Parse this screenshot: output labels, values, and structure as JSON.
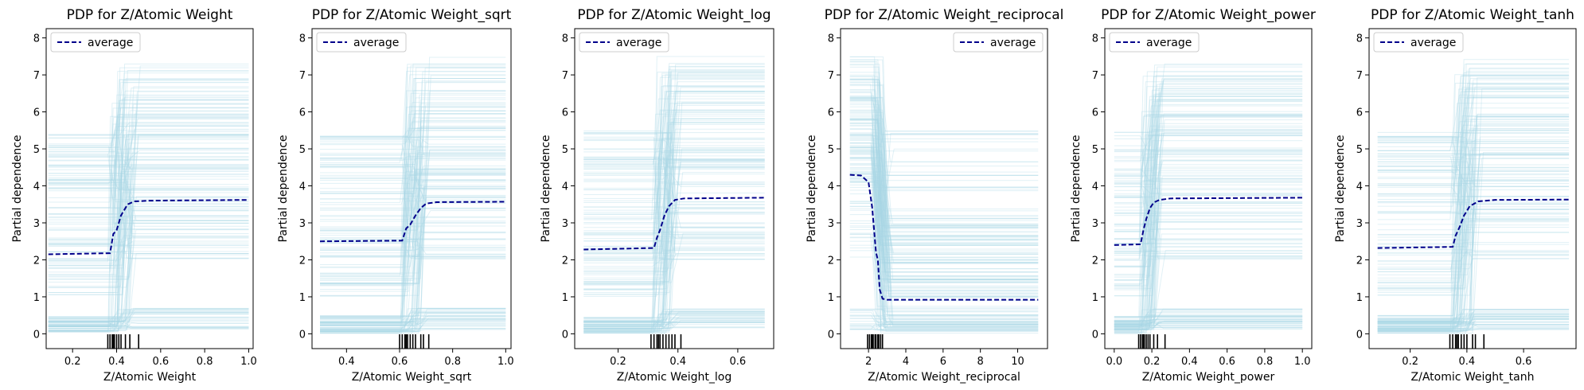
{
  "chart_data": [
    {
      "type": "line",
      "title": "PDP for Z/Atomic Weight",
      "xlabel": "Z/Atomic Weight",
      "ylabel": "Partial dependence",
      "xlim": [
        0.08,
        1.02
      ],
      "ylim": [
        -0.4,
        8.25
      ],
      "xticks": [
        0.2,
        0.4,
        0.6,
        0.8,
        1.0
      ],
      "xtick_labels": [
        "0.2",
        "0.4",
        "0.6",
        "0.8",
        "1.0"
      ],
      "yticks": [
        0,
        1,
        2,
        3,
        4,
        5,
        6,
        7,
        8
      ],
      "ytick_labels": [
        "0",
        "1",
        "2",
        "3",
        "4",
        "5",
        "6",
        "7",
        "8"
      ],
      "legend": {
        "label": "average",
        "position": "upper left"
      },
      "ice": {
        "x_start": 0.09,
        "x_end": 1.0,
        "jump_lo": 0.36,
        "jump_hi": 0.46
      },
      "average": {
        "x": [
          0.09,
          0.37,
          0.385,
          0.4,
          0.42,
          0.45,
          0.48,
          0.55,
          1.0
        ],
        "y": [
          2.15,
          2.18,
          2.7,
          2.8,
          3.2,
          3.5,
          3.58,
          3.6,
          3.62
        ]
      },
      "rug": [
        0.36,
        0.37,
        0.38,
        0.385,
        0.39,
        0.4,
        0.41,
        0.42,
        0.44,
        0.46,
        0.5
      ]
    },
    {
      "type": "line",
      "title": "PDP for Z/Atomic Weight_sqrt",
      "xlabel": "Z/Atomic Weight_sqrt",
      "ylabel": "Partial dependence",
      "xlim": [
        0.27,
        1.02
      ],
      "ylim": [
        -0.4,
        8.25
      ],
      "xticks": [
        0.4,
        0.6,
        0.8,
        1.0
      ],
      "xtick_labels": [
        "0.4",
        "0.6",
        "0.8",
        "1.0"
      ],
      "yticks": [
        0,
        1,
        2,
        3,
        4,
        5,
        6,
        7,
        8
      ],
      "ytick_labels": [
        "0",
        "1",
        "2",
        "3",
        "4",
        "5",
        "6",
        "7",
        "8"
      ],
      "legend": {
        "label": "average",
        "position": "upper left"
      },
      "ice": {
        "x_start": 0.3,
        "x_end": 1.0,
        "jump_lo": 0.6,
        "jump_hi": 0.68
      },
      "average": {
        "x": [
          0.3,
          0.61,
          0.625,
          0.64,
          0.66,
          0.68,
          0.7,
          0.74,
          1.0
        ],
        "y": [
          2.5,
          2.52,
          2.85,
          2.95,
          3.2,
          3.4,
          3.52,
          3.56,
          3.57
        ]
      },
      "rug": [
        0.6,
        0.61,
        0.62,
        0.625,
        0.63,
        0.64,
        0.65,
        0.66,
        0.68,
        0.69,
        0.71
      ]
    },
    {
      "type": "line",
      "title": "PDP for Z/Atomic Weight_log",
      "xlabel": "Z/Atomic Weight_log",
      "ylabel": "Partial dependence",
      "xlim": [
        0.055,
        0.72
      ],
      "ylim": [
        -0.4,
        8.25
      ],
      "xticks": [
        0.2,
        0.4,
        0.6
      ],
      "xtick_labels": [
        "0.2",
        "0.4",
        "0.6"
      ],
      "yticks": [
        0,
        1,
        2,
        3,
        4,
        5,
        6,
        7,
        8
      ],
      "ytick_labels": [
        "0",
        "1",
        "2",
        "3",
        "4",
        "5",
        "6",
        "7",
        "8"
      ],
      "legend": {
        "label": "average",
        "position": "upper left"
      },
      "ice": {
        "x_start": 0.085,
        "x_end": 0.69,
        "jump_lo": 0.31,
        "jump_hi": 0.38
      },
      "average": {
        "x": [
          0.085,
          0.32,
          0.33,
          0.34,
          0.355,
          0.37,
          0.39,
          0.42,
          0.69
        ],
        "y": [
          2.28,
          2.32,
          2.6,
          2.8,
          3.2,
          3.45,
          3.62,
          3.66,
          3.68
        ]
      },
      "rug": [
        0.31,
        0.32,
        0.33,
        0.335,
        0.34,
        0.35,
        0.36,
        0.37,
        0.38,
        0.39,
        0.41
      ]
    },
    {
      "type": "line",
      "title": "PDP for Z/Atomic Weight_reciprocal",
      "xlabel": "Z/Atomic Weight_reciprocal",
      "ylabel": "Partial dependence",
      "xlim": [
        0.5,
        11.6
      ],
      "ylim": [
        -0.4,
        8.25
      ],
      "xticks": [
        2,
        4,
        6,
        8,
        10
      ],
      "xtick_labels": [
        "2",
        "4",
        "6",
        "8",
        "10"
      ],
      "yticks": [
        0,
        1,
        2,
        3,
        4,
        5,
        6,
        7,
        8
      ],
      "ytick_labels": [
        "0",
        "1",
        "2",
        "3",
        "4",
        "5",
        "6",
        "7",
        "8"
      ],
      "legend": {
        "label": "average",
        "position": "upper right"
      },
      "ice": {
        "x_start": 1.0,
        "x_end": 11.1,
        "jump_lo": 2.1,
        "jump_hi": 2.8
      },
      "average": {
        "x": [
          1.0,
          1.6,
          2.0,
          2.2,
          2.4,
          2.5,
          2.6,
          2.75,
          3.0,
          11.1
        ],
        "y": [
          4.3,
          4.28,
          4.1,
          3.4,
          2.2,
          2.0,
          1.2,
          0.95,
          0.92,
          0.92
        ]
      },
      "rug": [
        1.95,
        2.05,
        2.15,
        2.2,
        2.25,
        2.35,
        2.4,
        2.5,
        2.55,
        2.65,
        2.75
      ]
    },
    {
      "type": "line",
      "title": "PDP for Z/Atomic Weight_power",
      "xlabel": "Z/Atomic Weight_power",
      "ylabel": "Partial dependence",
      "xlim": [
        -0.05,
        1.05
      ],
      "ylim": [
        -0.4,
        8.25
      ],
      "xticks": [
        0.0,
        0.2,
        0.4,
        0.6,
        0.8,
        1.0
      ],
      "xtick_labels": [
        "0.0",
        "0.2",
        "0.4",
        "0.6",
        "0.8",
        "1.0"
      ],
      "yticks": [
        0,
        1,
        2,
        3,
        4,
        5,
        6,
        7,
        8
      ],
      "ytick_labels": [
        "0",
        "1",
        "2",
        "3",
        "4",
        "5",
        "6",
        "7",
        "8"
      ],
      "legend": {
        "label": "average",
        "position": "upper left"
      },
      "ice": {
        "x_start": 0.0,
        "x_end": 1.0,
        "jump_lo": 0.13,
        "jump_hi": 0.22
      },
      "average": {
        "x": [
          0.0,
          0.14,
          0.155,
          0.17,
          0.19,
          0.21,
          0.24,
          0.3,
          1.0
        ],
        "y": [
          2.4,
          2.42,
          2.8,
          3.1,
          3.4,
          3.55,
          3.62,
          3.66,
          3.68
        ]
      },
      "rug": [
        0.13,
        0.14,
        0.15,
        0.155,
        0.16,
        0.17,
        0.18,
        0.19,
        0.21,
        0.23,
        0.27
      ]
    },
    {
      "type": "line",
      "title": "PDP for Z/Atomic Weight_tanh",
      "xlabel": "Z/Atomic Weight_tanh",
      "ylabel": "Partial dependence",
      "xlim": [
        0.055,
        0.785
      ],
      "ylim": [
        -0.4,
        8.25
      ],
      "xticks": [
        0.2,
        0.4,
        0.6
      ],
      "xtick_labels": [
        "0.2",
        "0.4",
        "0.6"
      ],
      "yticks": [
        0,
        1,
        2,
        3,
        4,
        5,
        6,
        7,
        8
      ],
      "ytick_labels": [
        "0",
        "1",
        "2",
        "3",
        "4",
        "5",
        "6",
        "7",
        "8"
      ],
      "legend": {
        "label": "average",
        "position": "upper left"
      },
      "ice": {
        "x_start": 0.085,
        "x_end": 0.76,
        "jump_lo": 0.34,
        "jump_hi": 0.42
      },
      "average": {
        "x": [
          0.085,
          0.35,
          0.36,
          0.375,
          0.39,
          0.41,
          0.44,
          0.5,
          0.76
        ],
        "y": [
          2.32,
          2.35,
          2.65,
          2.9,
          3.2,
          3.45,
          3.58,
          3.62,
          3.63
        ]
      },
      "rug": [
        0.34,
        0.35,
        0.36,
        0.365,
        0.37,
        0.38,
        0.39,
        0.4,
        0.42,
        0.43,
        0.46
      ]
    }
  ]
}
